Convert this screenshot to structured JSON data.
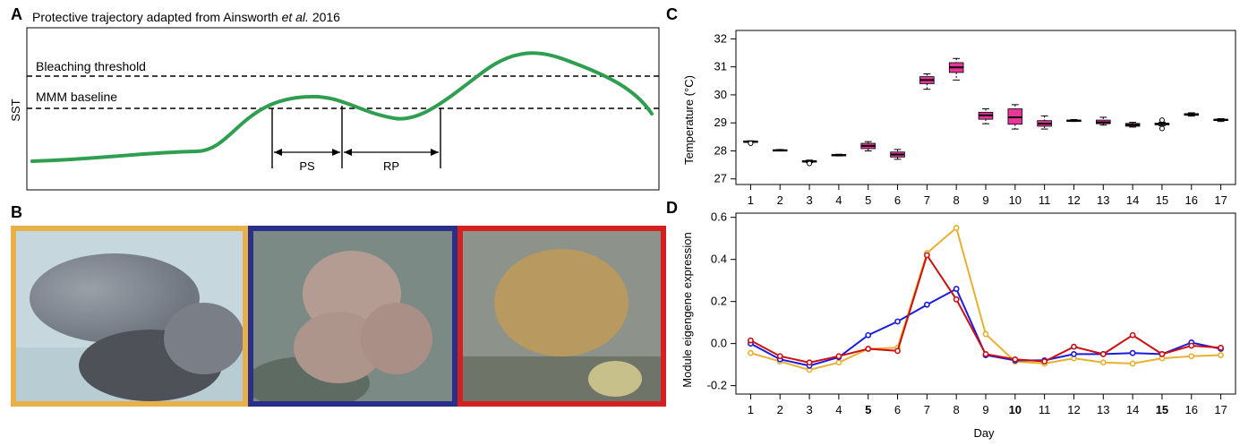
{
  "panel_labels": {
    "a": "A",
    "b": "B",
    "c": "C",
    "d": "D"
  },
  "panel_a": {
    "title_prefix": "Protective trajectory adapted from Ainsworth ",
    "title_italic": "et al.",
    "title_suffix": " 2016",
    "ylabel": "SST",
    "bleaching_label": "Bleaching threshold",
    "baseline_label": "MMM baseline",
    "ps_label": "PS",
    "rp_label": "RP",
    "curve_color": "#2e9e4f"
  },
  "panel_b": {
    "photos": [
      {
        "name": "coral-photo-orange",
        "border": "#e8b048"
      },
      {
        "name": "coral-photo-blue",
        "border": "#2b2f8a"
      },
      {
        "name": "coral-photo-red",
        "border": "#d42020"
      }
    ]
  },
  "chart_data": [
    {
      "type": "box",
      "ylabel": "Temperature (°C)",
      "ylim": [
        26.8,
        32.3
      ],
      "yticks": [
        27,
        28,
        29,
        30,
        31,
        32
      ],
      "categories": [
        "1",
        "2",
        "3",
        "4",
        "5",
        "6",
        "7",
        "8",
        "9",
        "10",
        "11",
        "12",
        "13",
        "14",
        "15",
        "16",
        "17"
      ],
      "box_color": "#e8359a",
      "boxes": [
        {
          "q1": 28.31,
          "median": 28.33,
          "q3": 28.35,
          "min": 28.3,
          "max": 28.36,
          "outliers": [
            28.27
          ]
        },
        {
          "q1": 28.01,
          "median": 28.02,
          "q3": 28.04,
          "min": 28.0,
          "max": 28.05,
          "outliers": []
        },
        {
          "q1": 27.6,
          "median": 27.62,
          "q3": 27.65,
          "min": 27.58,
          "max": 27.67,
          "outliers": [
            27.55
          ]
        },
        {
          "q1": 27.83,
          "median": 27.85,
          "q3": 27.87,
          "min": 27.82,
          "max": 27.88,
          "outliers": []
        },
        {
          "q1": 28.08,
          "median": 28.18,
          "q3": 28.27,
          "min": 28.0,
          "max": 28.33,
          "outliers": []
        },
        {
          "q1": 27.78,
          "median": 27.87,
          "q3": 27.96,
          "min": 27.7,
          "max": 28.05,
          "outliers": []
        },
        {
          "q1": 30.4,
          "median": 30.53,
          "q3": 30.65,
          "min": 30.2,
          "max": 30.75,
          "outliers": []
        },
        {
          "q1": 30.8,
          "median": 30.98,
          "q3": 31.15,
          "min": 30.53,
          "max": 31.3,
          "outliers": []
        },
        {
          "q1": 29.13,
          "median": 29.27,
          "q3": 29.38,
          "min": 28.97,
          "max": 29.5,
          "outliers": []
        },
        {
          "q1": 28.95,
          "median": 29.2,
          "q3": 29.5,
          "min": 28.78,
          "max": 29.65,
          "outliers": []
        },
        {
          "q1": 28.88,
          "median": 28.97,
          "q3": 29.08,
          "min": 28.78,
          "max": 29.25,
          "outliers": []
        },
        {
          "q1": 29.07,
          "median": 29.08,
          "q3": 29.1,
          "min": 29.05,
          "max": 29.12,
          "outliers": []
        },
        {
          "q1": 28.97,
          "median": 29.02,
          "q3": 29.1,
          "min": 28.92,
          "max": 29.2,
          "outliers": []
        },
        {
          "q1": 28.88,
          "median": 28.93,
          "q3": 28.98,
          "min": 28.85,
          "max": 29.02,
          "outliers": []
        },
        {
          "q1": 28.93,
          "median": 28.96,
          "q3": 28.99,
          "min": 28.9,
          "max": 29.02,
          "outliers": [
            29.1,
            28.8
          ]
        },
        {
          "q1": 29.27,
          "median": 29.3,
          "q3": 29.33,
          "min": 29.24,
          "max": 29.36,
          "outliers": []
        },
        {
          "q1": 29.09,
          "median": 29.11,
          "q3": 29.13,
          "min": 29.05,
          "max": 29.15,
          "outliers": []
        }
      ]
    },
    {
      "type": "line",
      "xlabel": "Day",
      "ylabel": "Module eigengene expression",
      "ylim": [
        -0.24,
        0.62
      ],
      "yticks": [
        "-0.2",
        "0.0",
        "0.2",
        "0.4",
        "0.6"
      ],
      "x": [
        "1",
        "2",
        "3",
        "4",
        "5",
        "6",
        "7",
        "8",
        "9",
        "10",
        "11",
        "12",
        "13",
        "14",
        "15",
        "16",
        "17"
      ],
      "bold_ticks": [
        "5",
        "10",
        "15"
      ],
      "series": [
        {
          "color": "#e8b030",
          "values": [
            -0.045,
            -0.085,
            -0.125,
            -0.09,
            -0.025,
            -0.02,
            0.43,
            0.55,
            0.045,
            -0.085,
            -0.095,
            -0.07,
            -0.09,
            -0.095,
            -0.07,
            -0.06,
            -0.055
          ]
        },
        {
          "color": "#1a1ae0",
          "values": [
            0.0,
            -0.075,
            -0.105,
            -0.065,
            0.04,
            0.105,
            0.185,
            0.26,
            -0.055,
            -0.08,
            -0.08,
            -0.05,
            -0.05,
            -0.045,
            -0.05,
            0.005,
            -0.025
          ]
        },
        {
          "color": "#cc1010",
          "values": [
            0.015,
            -0.06,
            -0.09,
            -0.06,
            -0.025,
            -0.035,
            0.42,
            0.21,
            -0.05,
            -0.075,
            -0.085,
            -0.015,
            -0.05,
            0.04,
            -0.05,
            -0.01,
            -0.02
          ]
        }
      ]
    }
  ]
}
